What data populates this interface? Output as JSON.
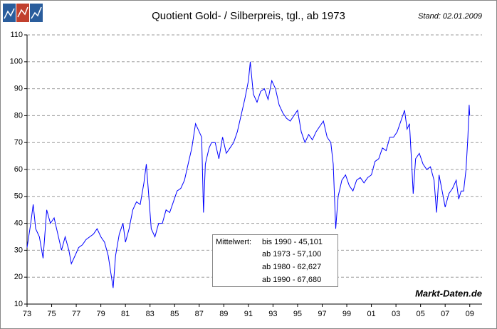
{
  "chart_data": {
    "type": "line",
    "title": "Quotient Gold- / Silberpreis, tgl., ab 1973",
    "stand": "Stand: 02.01.2009",
    "source": "Markt-Daten.de",
    "annotation_label": "Mittelwert:",
    "annotation_lines": [
      "bis 1990 - 45,101",
      "ab 1973 - 57,100",
      "ab 1980 - 62,627",
      "ab 1990 - 67,680"
    ],
    "color": "#0000ff",
    "grid": true,
    "xlim": [
      1973,
      2010
    ],
    "ylim": [
      10,
      110
    ],
    "yticks": [
      10,
      20,
      30,
      40,
      50,
      60,
      70,
      80,
      90,
      100,
      110
    ],
    "xticks": [
      {
        "value": 1973,
        "label": "73"
      },
      {
        "value": 1975,
        "label": "75"
      },
      {
        "value": 1977,
        "label": "77"
      },
      {
        "value": 1979,
        "label": "79"
      },
      {
        "value": 1981,
        "label": "81"
      },
      {
        "value": 1983,
        "label": "83"
      },
      {
        "value": 1985,
        "label": "85"
      },
      {
        "value": 1987,
        "label": "87"
      },
      {
        "value": 1989,
        "label": "89"
      },
      {
        "value": 1991,
        "label": "91"
      },
      {
        "value": 1993,
        "label": "93"
      },
      {
        "value": 1995,
        "label": "95"
      },
      {
        "value": 1997,
        "label": "97"
      },
      {
        "value": 1999,
        "label": "99"
      },
      {
        "value": 2001,
        "label": "01"
      },
      {
        "value": 2003,
        "label": "03"
      },
      {
        "value": 2005,
        "label": "05"
      },
      {
        "value": 2007,
        "label": "07"
      },
      {
        "value": 2009,
        "label": "09"
      }
    ],
    "x": [
      1973.0,
      1973.3,
      1973.5,
      1973.7,
      1974.0,
      1974.3,
      1974.6,
      1974.9,
      1975.2,
      1975.5,
      1975.8,
      1976.1,
      1976.4,
      1976.6,
      1976.9,
      1977.2,
      1977.5,
      1977.8,
      1978.1,
      1978.4,
      1978.7,
      1979.0,
      1979.3,
      1979.6,
      1979.8,
      1980.0,
      1980.2,
      1980.5,
      1980.8,
      1981.0,
      1981.3,
      1981.6,
      1981.9,
      1982.2,
      1982.5,
      1982.7,
      1982.9,
      1983.1,
      1983.4,
      1983.7,
      1984.0,
      1984.3,
      1984.6,
      1984.9,
      1985.2,
      1985.5,
      1985.8,
      1986.1,
      1986.4,
      1986.7,
      1987.0,
      1987.2,
      1987.35,
      1987.5,
      1987.8,
      1988.0,
      1988.3,
      1988.6,
      1988.9,
      1989.2,
      1989.5,
      1989.8,
      1990.1,
      1990.4,
      1990.7,
      1991.0,
      1991.15,
      1991.4,
      1991.7,
      1992.0,
      1992.3,
      1992.6,
      1992.9,
      1993.2,
      1993.5,
      1993.8,
      1994.1,
      1994.4,
      1994.7,
      1995.0,
      1995.3,
      1995.6,
      1995.9,
      1996.2,
      1996.5,
      1996.8,
      1997.1,
      1997.4,
      1997.7,
      1997.9,
      1998.1,
      1998.3,
      1998.6,
      1998.9,
      1999.2,
      1999.5,
      1999.8,
      2000.1,
      2000.4,
      2000.7,
      2001.0,
      2001.3,
      2001.6,
      2001.9,
      2002.2,
      2002.5,
      2002.8,
      2003.1,
      2003.4,
      2003.7,
      2003.9,
      2004.1,
      2004.3,
      2004.4,
      2004.6,
      2004.9,
      2005.2,
      2005.5,
      2005.8,
      2006.1,
      2006.3,
      2006.5,
      2006.8,
      2007.0,
      2007.3,
      2007.6,
      2007.9,
      2008.1,
      2008.3,
      2008.5,
      2008.7,
      2008.85,
      2008.95,
      2009.0
    ],
    "values": [
      31,
      40,
      47,
      38,
      35,
      27,
      45,
      40,
      42,
      36,
      30,
      35,
      30,
      25,
      28,
      31,
      32,
      34,
      35,
      36,
      38,
      35,
      33,
      28,
      22,
      16,
      28,
      36,
      40,
      33,
      38,
      45,
      48,
      47,
      55,
      62,
      50,
      38,
      35,
      40,
      40,
      45,
      44,
      48,
      52,
      53,
      56,
      62,
      68,
      77,
      74,
      72,
      44,
      62,
      68,
      70,
      70,
      64,
      72,
      66,
      68,
      70,
      74,
      80,
      86,
      93,
      100,
      88,
      85,
      89,
      90,
      86,
      93,
      90,
      84,
      81,
      79,
      78,
      80,
      82,
      74,
      70,
      73,
      71,
      74,
      76,
      78,
      72,
      70,
      62,
      38,
      50,
      56,
      58,
      54,
      52,
      56,
      57,
      55,
      57,
      58,
      63,
      64,
      68,
      67,
      72,
      72,
      74,
      78,
      82,
      75,
      77,
      60,
      51,
      64,
      66,
      62,
      60,
      61,
      56,
      44,
      58,
      51,
      46,
      51,
      53,
      56,
      49,
      52,
      52,
      60,
      72,
      84,
      80
    ]
  }
}
